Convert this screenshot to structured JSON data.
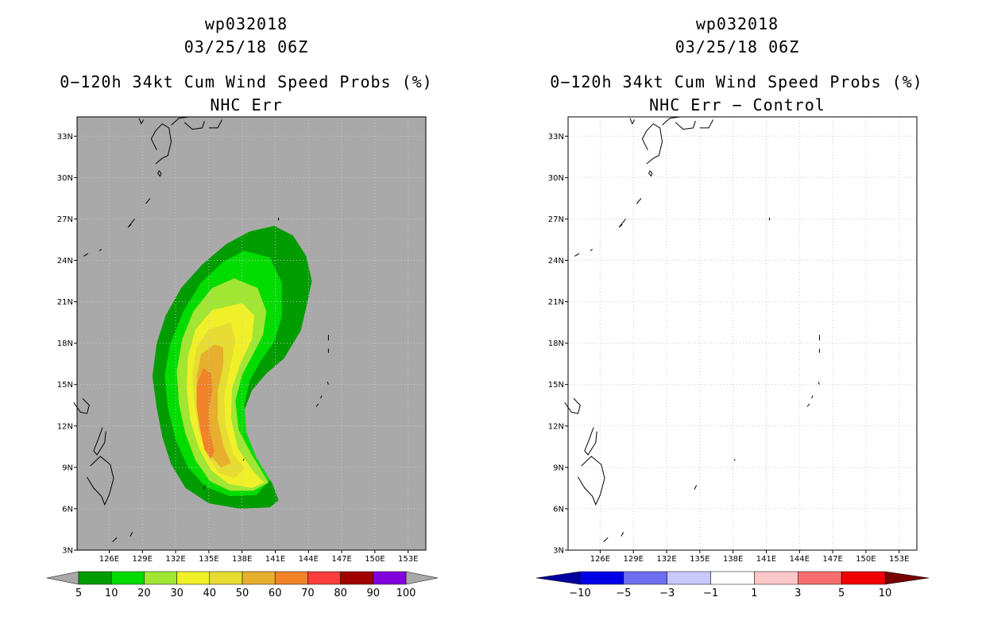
{
  "panels": [
    {
      "storm_id": "wp032018",
      "datetime": "03/25/18 06Z",
      "title": "0−120h 34kt Cum Wind Speed Probs (%)",
      "subtitle": "NHC Err",
      "background": "#a9a9a9",
      "colorbar": {
        "labels": [
          "5",
          "10",
          "20",
          "30",
          "40",
          "50",
          "60",
          "70",
          "80",
          "90",
          "100"
        ],
        "colors": [
          "#009c00",
          "#00dc00",
          "#a0e632",
          "#f0f028",
          "#e6dc32",
          "#e6af2d",
          "#f08228",
          "#fa3c3c",
          "#a00000",
          "#8200dc"
        ],
        "end_color": "#a9a9a9"
      }
    },
    {
      "storm_id": "wp032018",
      "datetime": "03/25/18 06Z",
      "title": "0−120h 34kt Cum Wind Speed Probs (%)",
      "subtitle": "NHC Err − Control",
      "background": "#ffffff",
      "colorbar": {
        "labels": [
          "−10",
          "−5",
          "−3",
          "−1",
          "1",
          "3",
          "5",
          "10"
        ],
        "colors": [
          "#0000e6",
          "#6e6ef0",
          "#c8c8fa",
          "#ffffff",
          "#fac8c8",
          "#f56e6e",
          "#f00000"
        ],
        "low_end_color": "#0000a0",
        "high_end_color": "#780000"
      }
    }
  ],
  "chart_data": [
    {
      "type": "heatmap",
      "title": "0−120h 34kt Cum Wind Speed Probs (%)",
      "subtitle": "NHC Err",
      "x_ticks": [
        "126E",
        "129E",
        "132E",
        "135E",
        "138E",
        "141E",
        "144E",
        "147E",
        "150E",
        "153E"
      ],
      "y_ticks": [
        "33N",
        "30N",
        "27N",
        "24N",
        "21N",
        "18N",
        "15N",
        "12N",
        "9N",
        "6N",
        "3N"
      ],
      "x_range_lon": [
        123.1,
        154.6
      ],
      "y_range_lat": [
        3,
        34.4
      ],
      "contour_levels_percent": [
        5,
        10,
        20,
        30,
        40,
        50,
        60,
        70,
        80,
        90,
        100
      ],
      "filled_regions": [
        {
          "level": 5,
          "color": "#009c00",
          "outline": [
            [
              140.9,
              26.5
            ],
            [
              142.6,
              25.8
            ],
            [
              143.8,
              24.3
            ],
            [
              144.3,
              22.5
            ],
            [
              143.8,
              20.6
            ],
            [
              143.3,
              18.9
            ],
            [
              141.8,
              16.9
            ],
            [
              140.2,
              15.8
            ],
            [
              138.9,
              14.6
            ],
            [
              138.1,
              12.9
            ],
            [
              138.3,
              11.0
            ],
            [
              139.4,
              9.2
            ],
            [
              140.7,
              7.9
            ],
            [
              141.3,
              6.6
            ],
            [
              140.5,
              6.1
            ],
            [
              137.8,
              6.0
            ],
            [
              135.0,
              6.4
            ],
            [
              132.9,
              7.5
            ],
            [
              131.6,
              9.2
            ],
            [
              130.8,
              11.2
            ],
            [
              130.3,
              13.3
            ],
            [
              129.9,
              15.6
            ],
            [
              130.3,
              18.0
            ],
            [
              131.1,
              20.0
            ],
            [
              132.5,
              22.0
            ],
            [
              134.4,
              23.7
            ],
            [
              136.6,
              25.2
            ],
            [
              138.7,
              26.1
            ]
          ]
        },
        {
          "level": 10,
          "color": "#00dc00",
          "outline": [
            [
              138.2,
              24.7
            ],
            [
              140.5,
              24.2
            ],
            [
              141.6,
              22.4
            ],
            [
              141.6,
              19.9
            ],
            [
              140.9,
              18.1
            ],
            [
              139.6,
              16.6
            ],
            [
              138.7,
              15.3
            ],
            [
              138.2,
              13.5
            ],
            [
              138.4,
              11.5
            ],
            [
              139.3,
              9.7
            ],
            [
              140.5,
              8.1
            ],
            [
              139.3,
              7.0
            ],
            [
              136.9,
              6.9
            ],
            [
              134.7,
              7.6
            ],
            [
              133.1,
              9.0
            ],
            [
              132.0,
              11.0
            ],
            [
              131.3,
              13.3
            ],
            [
              131.0,
              15.7
            ],
            [
              131.5,
              17.9
            ],
            [
              132.7,
              20.3
            ],
            [
              134.3,
              22.4
            ],
            [
              136.3,
              23.9
            ]
          ]
        },
        {
          "level": 20,
          "color": "#a0e632",
          "outline": [
            [
              137.3,
              22.7
            ],
            [
              139.4,
              22.0
            ],
            [
              140.2,
              20.3
            ],
            [
              139.9,
              18.6
            ],
            [
              139.0,
              17.2
            ],
            [
              138.0,
              15.7
            ],
            [
              137.4,
              13.8
            ],
            [
              137.7,
              11.7
            ],
            [
              138.9,
              9.9
            ],
            [
              140.4,
              7.9
            ],
            [
              139.0,
              7.3
            ],
            [
              136.9,
              7.3
            ],
            [
              135.1,
              8.0
            ],
            [
              133.8,
              9.5
            ],
            [
              132.9,
              11.4
            ],
            [
              132.3,
              13.6
            ],
            [
              132.1,
              16.0
            ],
            [
              132.6,
              18.3
            ],
            [
              133.6,
              20.3
            ],
            [
              135.3,
              22.0
            ]
          ]
        },
        {
          "level": 30,
          "color": "#f0f028",
          "outline": [
            [
              138.0,
              20.9
            ],
            [
              139.1,
              20.0
            ],
            [
              138.9,
              18.3
            ],
            [
              137.9,
              16.6
            ],
            [
              137.1,
              14.7
            ],
            [
              137.0,
              12.6
            ],
            [
              137.6,
              10.4
            ],
            [
              139.1,
              8.6
            ],
            [
              140.0,
              7.9
            ],
            [
              138.9,
              7.5
            ],
            [
              136.8,
              7.8
            ],
            [
              135.2,
              8.8
            ],
            [
              134.1,
              10.4
            ],
            [
              133.3,
              12.5
            ],
            [
              133.0,
              14.7
            ],
            [
              133.1,
              17.0
            ],
            [
              133.8,
              19.0
            ],
            [
              135.3,
              20.4
            ]
          ]
        },
        {
          "level": 40,
          "color": "#e6dc32",
          "outline": [
            [
              137.0,
              19.5
            ],
            [
              137.4,
              18.2
            ],
            [
              136.9,
              16.2
            ],
            [
              136.4,
              14.1
            ],
            [
              136.5,
              12.0
            ],
            [
              137.2,
              10.0
            ],
            [
              138.2,
              8.9
            ],
            [
              137.3,
              8.2
            ],
            [
              135.9,
              8.6
            ],
            [
              134.8,
              9.9
            ],
            [
              134.1,
              11.6
            ],
            [
              133.7,
              13.6
            ],
            [
              133.5,
              15.8
            ],
            [
              133.9,
              17.7
            ],
            [
              135.0,
              19.0
            ]
          ]
        },
        {
          "level": 50,
          "color": "#e6af2d",
          "outline": [
            [
              135.5,
              17.9
            ],
            [
              136.3,
              17.7
            ],
            [
              136.3,
              16.4
            ],
            [
              135.8,
              14.5
            ],
            [
              135.8,
              12.5
            ],
            [
              136.3,
              10.6
            ],
            [
              137.0,
              9.3
            ],
            [
              136.1,
              9.0
            ],
            [
              135.0,
              10.0
            ],
            [
              134.4,
              11.7
            ],
            [
              134.0,
              13.6
            ],
            [
              133.9,
              15.6
            ],
            [
              134.3,
              17.2
            ]
          ]
        },
        {
          "level": 60,
          "color": "#f08228",
          "outline": [
            [
              134.5,
              16.2
            ],
            [
              135.2,
              15.8
            ],
            [
              135.3,
              14.6
            ],
            [
              135.0,
              13.1
            ],
            [
              135.1,
              11.5
            ],
            [
              135.5,
              10.2
            ],
            [
              135.2,
              9.6
            ],
            [
              134.6,
              10.3
            ],
            [
              134.2,
              11.8
            ],
            [
              133.9,
              13.4
            ],
            [
              133.9,
              15.0
            ]
          ]
        }
      ]
    },
    {
      "type": "heatmap",
      "title": "0−120h 34kt Cum Wind Speed Probs (%)",
      "subtitle": "NHC Err − Control",
      "x_ticks": [
        "126E",
        "129E",
        "132E",
        "135E",
        "138E",
        "141E",
        "144E",
        "147E",
        "150E",
        "153E"
      ],
      "y_ticks": [
        "33N",
        "30N",
        "27N",
        "24N",
        "21N",
        "18N",
        "15N",
        "12N",
        "9N",
        "6N",
        "3N"
      ],
      "x_range_lon": [
        123.1,
        154.6
      ],
      "y_range_lat": [
        3,
        34.4
      ],
      "contour_levels_difference": [
        -10,
        -5,
        -3,
        -1,
        1,
        3,
        5,
        10
      ],
      "filled_regions": [],
      "note": "all differences between -1 and 1 (white)"
    }
  ]
}
